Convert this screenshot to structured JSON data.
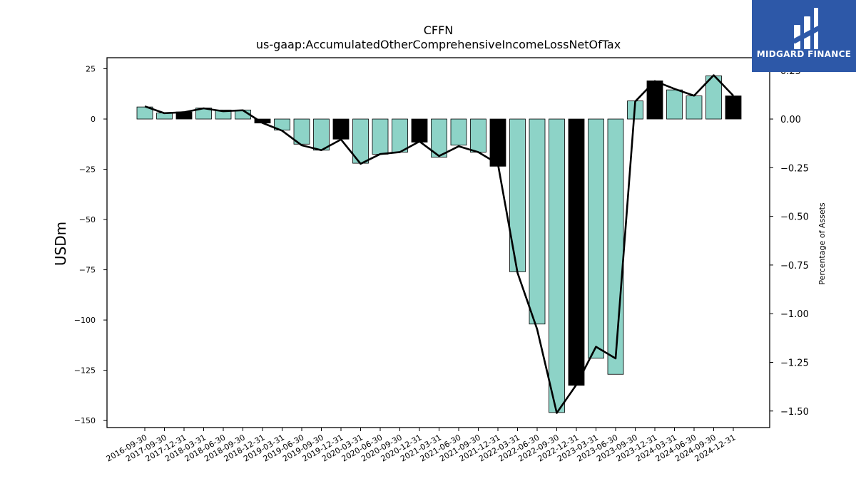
{
  "chart_data": {
    "type": "bar",
    "title": "CFFN",
    "subtitle": "us-gaap:AccumulatedOtherComprehensiveIncomeLossNetOfTax",
    "ylabel": "USDm",
    "ylabel_right": "Percentage of Assets",
    "ylim": [
      -153.5,
      30.5
    ],
    "ylim_right": [
      -1.585,
      0.315
    ],
    "yticks": [
      25,
      0,
      -25,
      -50,
      -75,
      -100,
      -125,
      -150
    ],
    "yticks_right": [
      0.25,
      0.0,
      -0.25,
      -0.5,
      -0.75,
      -1.0,
      -1.25,
      -1.5
    ],
    "yticks_right_labels": [
      "0.25",
      "0.00",
      "−0.25",
      "−0.50",
      "−0.75",
      "−1.00",
      "−1.25",
      "−1.50"
    ],
    "categories": [
      "2016-09-30",
      "2017-09-30",
      "2017-12-31",
      "2018-03-31",
      "2018-06-30",
      "2018-09-30",
      "2018-12-31",
      "2019-03-31",
      "2019-06-30",
      "2019-09-30",
      "2019-12-31",
      "2020-03-31",
      "2020-06-30",
      "2020-09-30",
      "2020-12-31",
      "2021-03-31",
      "2021-06-30",
      "2021-09-30",
      "2021-12-31",
      "2022-03-31",
      "2022-06-30",
      "2022-09-30",
      "2022-12-31",
      "2023-03-31",
      "2023-06-30",
      "2023-09-30",
      "2023-12-31",
      "2024-03-31",
      "2024-06-30",
      "2024-09-30",
      "2024-12-31"
    ],
    "series": [
      {
        "type": "bar",
        "axis": "left",
        "values": [
          6,
          3,
          3.5,
          5.5,
          4.5,
          4.5,
          -2,
          -5.5,
          -12.5,
          -15.5,
          -10,
          -22,
          -17.5,
          -16.5,
          -11.5,
          -19,
          -13,
          -16.5,
          -23.5,
          -76,
          -102,
          -146,
          -132.5,
          -119,
          -127,
          9,
          19,
          14.5,
          11.5,
          21.5,
          11.5
        ],
        "colors": [
          "#8dd3c7",
          "#8dd3c7",
          "#000000",
          "#8dd3c7",
          "#8dd3c7",
          "#8dd3c7",
          "#000000",
          "#8dd3c7",
          "#8dd3c7",
          "#8dd3c7",
          "#000000",
          "#8dd3c7",
          "#8dd3c7",
          "#8dd3c7",
          "#000000",
          "#8dd3c7",
          "#8dd3c7",
          "#8dd3c7",
          "#000000",
          "#8dd3c7",
          "#8dd3c7",
          "#8dd3c7",
          "#000000",
          "#8dd3c7",
          "#8dd3c7",
          "#8dd3c7",
          "#000000",
          "#8dd3c7",
          "#8dd3c7",
          "#8dd3c7",
          "#000000"
        ]
      },
      {
        "type": "line",
        "axis": "right",
        "color": "#000000",
        "values": [
          0.065,
          0.03,
          0.035,
          0.055,
          0.04,
          0.045,
          -0.02,
          -0.06,
          -0.135,
          -0.16,
          -0.105,
          -0.23,
          -0.18,
          -0.17,
          -0.115,
          -0.19,
          -0.14,
          -0.17,
          -0.23,
          -0.79,
          -1.08,
          -1.51,
          -1.365,
          -1.17,
          -1.23,
          0.09,
          0.195,
          0.155,
          0.12,
          0.225,
          0.12
        ]
      }
    ],
    "grid": false,
    "legend": "none"
  },
  "logo": {
    "brand_text": "MIDGARD FINANCE",
    "color": "#2d58a8"
  }
}
